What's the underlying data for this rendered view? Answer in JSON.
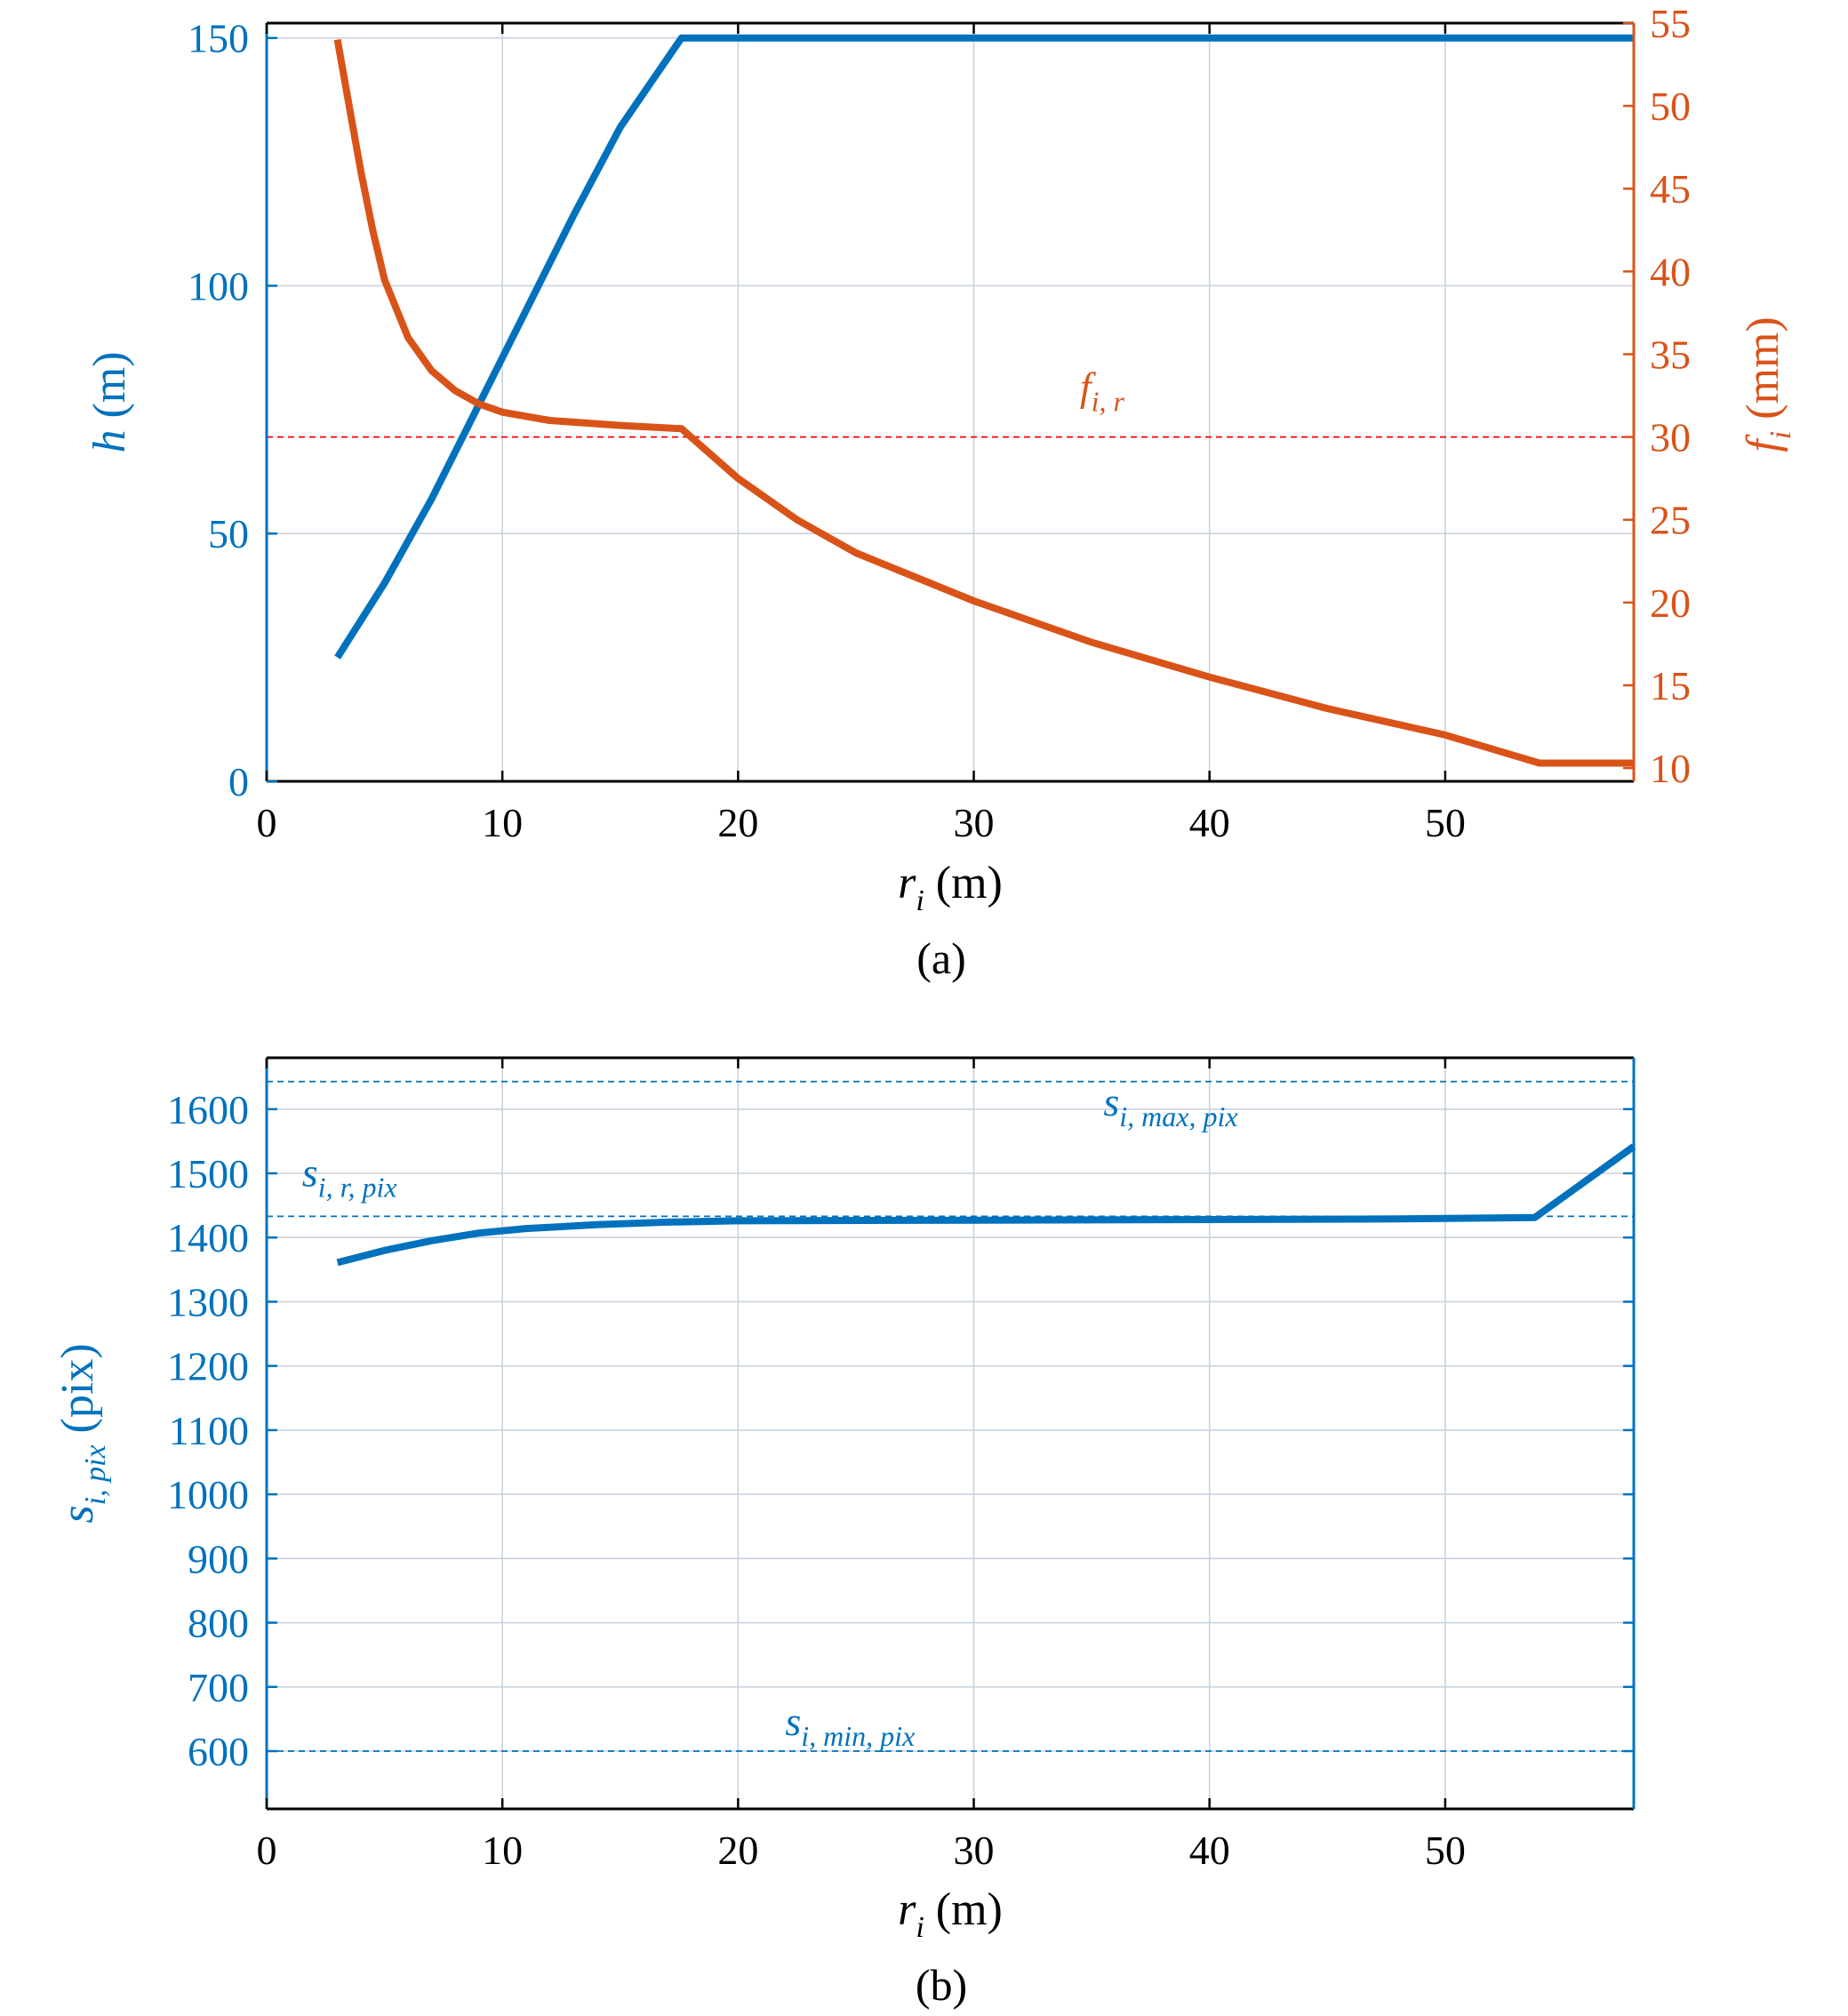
{
  "colors": {
    "blue": "#0072BD",
    "orange": "#D95319",
    "red_ref": "#FF0000",
    "grid": "#C8D2DC",
    "black": "#000000"
  },
  "chart_data": [
    {
      "type": "line",
      "panel_caption": "(a)",
      "grid": true,
      "x": {
        "label": "r",
        "label_sub": "i",
        "label_unit": " (m)",
        "lim": [
          0,
          58
        ],
        "ticks": [
          0,
          10,
          20,
          30,
          40,
          50
        ]
      },
      "y_left": {
        "label": "h",
        "label_unit": " (m)",
        "lim": [
          0,
          153
        ],
        "ticks": [
          0,
          50,
          100,
          150
        ],
        "color": "#0072BD"
      },
      "y_right": {
        "label": "f",
        "label_sub": "i",
        "label_unit": " (mm)",
        "lim": [
          9.2,
          55
        ],
        "ticks": [
          10,
          15,
          20,
          25,
          30,
          35,
          40,
          45,
          50,
          55
        ],
        "color": "#D95319"
      },
      "series": [
        {
          "axis": "left",
          "color": "#0072BD",
          "points": [
            [
              3,
              25
            ],
            [
              5,
              40
            ],
            [
              7,
              57
            ],
            [
              9,
              76
            ],
            [
              11,
              95
            ],
            [
              13,
              114
            ],
            [
              15,
              132
            ],
            [
              17.6,
              150
            ],
            [
              58,
              150
            ]
          ]
        },
        {
          "axis": "right",
          "color": "#D95319",
          "points": [
            [
              3,
              54
            ],
            [
              3.5,
              50
            ],
            [
              4,
              46
            ],
            [
              4.5,
              42.5
            ],
            [
              5,
              39.5
            ],
            [
              6,
              36
            ],
            [
              7,
              34
            ],
            [
              8,
              32.8
            ],
            [
              9,
              32
            ],
            [
              10,
              31.5
            ],
            [
              12,
              31
            ],
            [
              15,
              30.7
            ],
            [
              17.6,
              30.5
            ],
            [
              18,
              30
            ],
            [
              20,
              27.5
            ],
            [
              22.5,
              25
            ],
            [
              25,
              23
            ],
            [
              30,
              20.1
            ],
            [
              35,
              17.6
            ],
            [
              40,
              15.5
            ],
            [
              45,
              13.6
            ],
            [
              50,
              12
            ],
            [
              54,
              10.3
            ],
            [
              58,
              10.3
            ]
          ]
        }
      ],
      "reference_lines": [
        {
          "axis": "right",
          "y": 30,
          "color": "#FF0000"
        }
      ],
      "annotations": [
        {
          "text": "f",
          "sub": "i, r",
          "x": 34.5,
          "y_right": 32.2,
          "color": "#D95319"
        }
      ]
    },
    {
      "type": "line",
      "panel_caption": "(b)",
      "grid": true,
      "x": {
        "label": "r",
        "label_sub": "i",
        "label_unit": " (m)",
        "lim": [
          0,
          58
        ],
        "ticks": [
          0,
          10,
          20,
          30,
          40,
          50
        ]
      },
      "y_left": {
        "label": "s",
        "label_sub": "i, pix",
        "label_unit": " (pix)",
        "lim": [
          510,
          1680
        ],
        "ticks": [
          600,
          700,
          800,
          900,
          1000,
          1100,
          1200,
          1300,
          1400,
          1500,
          1600
        ],
        "color": "#0072BD"
      },
      "series": [
        {
          "axis": "left",
          "color": "#0072BD",
          "points": [
            [
              3,
              1361
            ],
            [
              5,
              1380
            ],
            [
              7,
              1395
            ],
            [
              9,
              1407
            ],
            [
              11,
              1414
            ],
            [
              14,
              1420
            ],
            [
              17,
              1424
            ],
            [
              20,
              1426
            ],
            [
              30,
              1427
            ],
            [
              40,
              1428
            ],
            [
              48,
              1429
            ],
            [
              53.8,
              1431
            ],
            [
              58,
              1542
            ]
          ]
        }
      ],
      "reference_lines": [
        {
          "axis": "left",
          "y": 1643,
          "color": "#0072BD"
        },
        {
          "axis": "left",
          "y": 1433,
          "color": "#0072BD"
        },
        {
          "axis": "left",
          "y": 600,
          "color": "#0072BD"
        }
      ],
      "annotations": [
        {
          "text": "s",
          "sub": "i, max, pix",
          "x": 35.5,
          "y_left": 1590,
          "color": "#0072BD"
        },
        {
          "text": "s",
          "sub": "i, r, pix",
          "x": 1.5,
          "y_left": 1480,
          "color": "#0072BD"
        },
        {
          "text": "s",
          "sub": "i, min, pix",
          "x": 22,
          "y_left": 625,
          "color": "#0072BD"
        }
      ]
    }
  ]
}
